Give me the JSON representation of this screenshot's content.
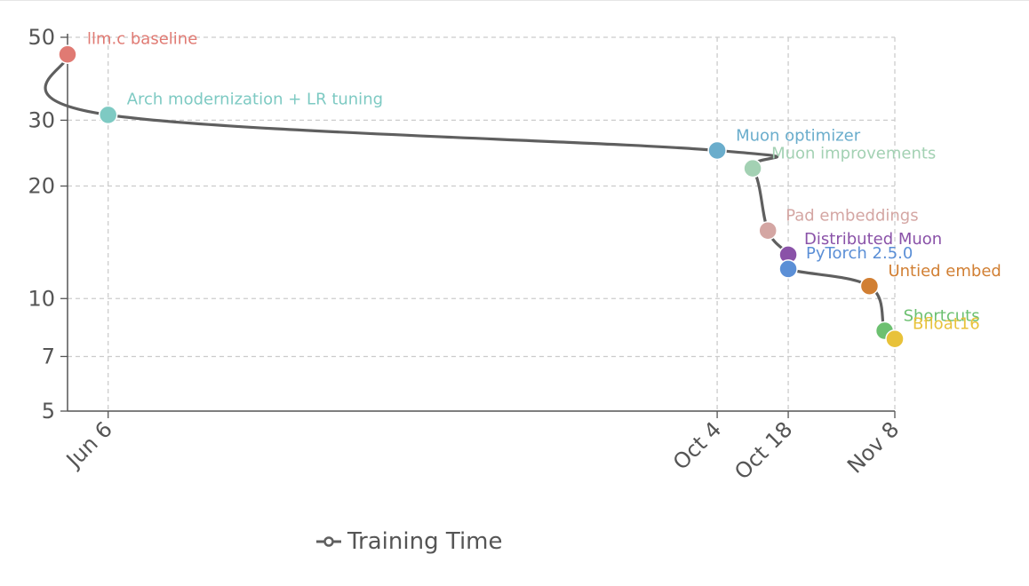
{
  "chart_data": {
    "type": "line",
    "y_scale": "log",
    "ylim": [
      5,
      50
    ],
    "xlim": [
      "2024-05-29",
      "2024-11-08"
    ],
    "y_ticks": [
      5,
      7,
      10,
      20,
      30,
      50
    ],
    "x_ticks": [
      {
        "date": "2024-06-06",
        "label": "Jun 6"
      },
      {
        "date": "2024-10-04",
        "label": "Oct 4"
      },
      {
        "date": "2024-10-18",
        "label": "Oct 18"
      },
      {
        "date": "2024-11-08",
        "label": "Nov 8"
      }
    ],
    "grid": true,
    "legend_position": "bottom-center",
    "series": [
      {
        "name": "Training Time",
        "color": "#5f5f5f",
        "points": [
          {
            "x": "2024-05-29",
            "y": 45,
            "label": "llm.c baseline",
            "color": "#e07a73"
          },
          {
            "x": "2024-06-06",
            "y": 31,
            "label": "Arch modernization + LR tuning",
            "color": "#7ecac3"
          },
          {
            "x": "2024-10-04",
            "y": 24.9,
            "label": "Muon optimizer",
            "color": "#6aadcc"
          },
          {
            "x": "2024-10-11",
            "y": 22.3,
            "label": "Muon improvements",
            "color": "#a3d1b3"
          },
          {
            "x": "2024-10-14",
            "y": 15.2,
            "label": "Pad embeddings",
            "color": "#d4a6a3"
          },
          {
            "x": "2024-10-18",
            "y": 13.1,
            "label": "Distributed Muon",
            "color": "#8a52a8"
          },
          {
            "x": "2024-10-18",
            "y": 12.0,
            "label": "PyTorch 2.5.0",
            "color": "#5b8fd6"
          },
          {
            "x": "2024-11-03",
            "y": 10.8,
            "label": "Untied embed",
            "color": "#d17f33"
          },
          {
            "x": "2024-11-06",
            "y": 8.2,
            "label": "Shortcuts",
            "color": "#6cc070"
          },
          {
            "x": "2024-11-08",
            "y": 7.8,
            "label": "Bfloat16",
            "color": "#e8c23a"
          }
        ]
      }
    ]
  }
}
